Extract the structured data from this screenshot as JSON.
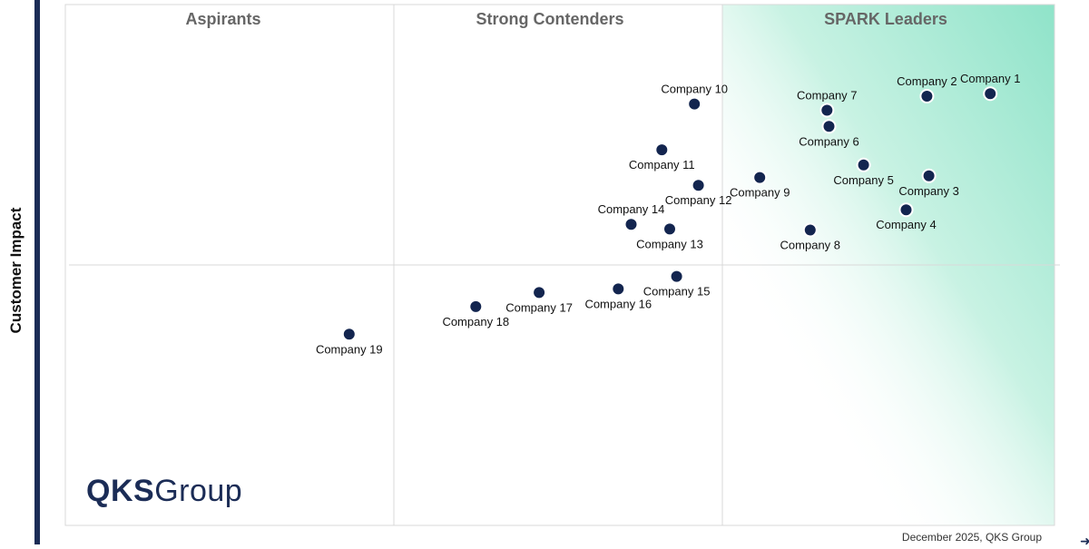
{
  "chart_data": {
    "type": "scatter",
    "y_axis_label": "Customer Impact",
    "xlim": [
      0,
      100
    ],
    "ylim": [
      0,
      100
    ],
    "quadrant_titles": [
      "Aspirants",
      "Strong Contenders",
      "SPARK Leaders"
    ],
    "points": [
      {
        "name": "Company 1",
        "x": 93.5,
        "y": 82.9,
        "label_pos": "above"
      },
      {
        "name": "Company 2",
        "x": 87.1,
        "y": 82.4,
        "label_pos": "above"
      },
      {
        "name": "Company 3",
        "x": 87.3,
        "y": 67.1,
        "label_pos": "below"
      },
      {
        "name": "Company 4",
        "x": 85.0,
        "y": 60.6,
        "label_pos": "below"
      },
      {
        "name": "Company 5",
        "x": 80.7,
        "y": 69.2,
        "label_pos": "below"
      },
      {
        "name": "Company 6",
        "x": 77.2,
        "y": 76.6,
        "label_pos": "below"
      },
      {
        "name": "Company 7",
        "x": 77.0,
        "y": 79.7,
        "label_pos": "above"
      },
      {
        "name": "Company 8",
        "x": 75.3,
        "y": 56.7,
        "label_pos": "below"
      },
      {
        "name": "Company 9",
        "x": 70.2,
        "y": 66.8,
        "label_pos": "below"
      },
      {
        "name": "Company 10",
        "x": 63.6,
        "y": 80.9,
        "label_pos": "above"
      },
      {
        "name": "Company 11",
        "x": 60.3,
        "y": 72.1,
        "label_pos": "below"
      },
      {
        "name": "Company 12",
        "x": 64.0,
        "y": 65.3,
        "label_pos": "below"
      },
      {
        "name": "Company 13",
        "x": 61.1,
        "y": 56.9,
        "label_pos": "below"
      },
      {
        "name": "Company 14",
        "x": 57.2,
        "y": 57.8,
        "label_pos": "above"
      },
      {
        "name": "Company 15",
        "x": 61.8,
        "y": 47.8,
        "label_pos": "below"
      },
      {
        "name": "Company 16",
        "x": 55.9,
        "y": 45.4,
        "label_pos": "below"
      },
      {
        "name": "Company 17",
        "x": 47.9,
        "y": 44.7,
        "label_pos": "below"
      },
      {
        "name": "Company 18",
        "x": 41.5,
        "y": 42.0,
        "label_pos": "below"
      },
      {
        "name": "Company 19",
        "x": 28.7,
        "y": 36.7,
        "label_pos": "below"
      }
    ]
  },
  "logo": {
    "strong": "QKS",
    "light": "Group"
  },
  "footer": "December 2025, QKS Group"
}
